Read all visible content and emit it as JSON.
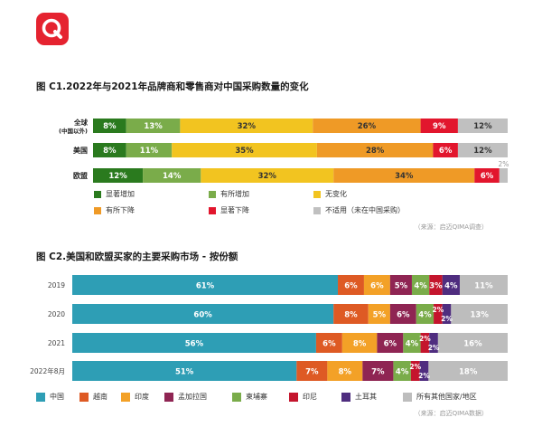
{
  "logo": {
    "icon": "q-logo-icon",
    "color": "#e52330"
  },
  "chart_data": [
    {
      "type": "bar",
      "stacked": "horizontal-100",
      "title": "图 C1.2022年与2021年品牌商和零售商对中国采购数量的变化",
      "source": "（来源：启迈QIMA调查）",
      "categories": [
        "全球\n(中国以外)",
        "美国",
        "欧盟"
      ],
      "category_labels": [
        [
          "全球",
          "(中国以外)"
        ],
        [
          "美国"
        ],
        [
          "欧盟"
        ]
      ],
      "series": [
        {
          "name": "显著增加",
          "color": "#2a7a1e",
          "values": [
            8,
            8,
            12
          ],
          "labels": [
            "8%",
            "8%",
            "12%"
          ]
        },
        {
          "name": "有所增加",
          "color": "#7aac4a",
          "values": [
            13,
            11,
            14
          ],
          "labels": [
            "13%",
            "11%",
            "14%"
          ]
        },
        {
          "name": "无变化",
          "color": "#f2c420",
          "values": [
            32,
            35,
            32
          ],
          "labels": [
            "32%",
            "35%",
            "32%"
          ]
        },
        {
          "name": "有所下降",
          "color": "#ef9a26",
          "values": [
            26,
            28,
            34
          ],
          "labels": [
            "26%",
            "28%",
            "34%"
          ]
        },
        {
          "name": "显著下降",
          "color": "#e2162d",
          "values": [
            9,
            6,
            6
          ],
          "labels": [
            "9%",
            "6%",
            "6%"
          ]
        },
        {
          "name": "不适用（未在中国采购）",
          "color": "#c0c0c0",
          "values": [
            12,
            12,
            2
          ],
          "labels": [
            "12%",
            "12%",
            "2%"
          ]
        }
      ],
      "legend_columns": 3
    },
    {
      "type": "bar",
      "stacked": "horizontal-100",
      "title": "图 C2.美国和欧盟买家的主要采购市场 - 按份额",
      "source": "（来源：启迈QIMA数据）",
      "categories": [
        "2019",
        "2020",
        "2021",
        "2022年8月"
      ],
      "series": [
        {
          "name": "中国",
          "color": "#2e9eb5",
          "values": [
            61,
            60,
            56,
            51
          ],
          "labels": [
            "61%",
            "60%",
            "56%",
            "51%"
          ]
        },
        {
          "name": "越南",
          "color": "#de5a24",
          "values": [
            6,
            8,
            6,
            7
          ],
          "labels": [
            "6%",
            "8%",
            "6%",
            "7%"
          ]
        },
        {
          "name": "印度",
          "color": "#f3a127",
          "values": [
            6,
            5,
            8,
            8
          ],
          "labels": [
            "6%",
            "5%",
            "8%",
            "8%"
          ]
        },
        {
          "name": "孟加拉国",
          "color": "#8f2553",
          "values": [
            5,
            6,
            6,
            7
          ],
          "labels": [
            "5%",
            "6%",
            "6%",
            "7%"
          ]
        },
        {
          "name": "柬埔寨",
          "color": "#7aac4a",
          "values": [
            4,
            4,
            4,
            4
          ],
          "labels": [
            "4%",
            "4%",
            "4%",
            "4%"
          ]
        },
        {
          "name": "印尼",
          "color": "#c4152d",
          "values": [
            3,
            2,
            2,
            2
          ],
          "labels": [
            "3%",
            "2%",
            "2%",
            "2%"
          ]
        },
        {
          "name": "土耳其",
          "color": "#4f2d7f",
          "values": [
            4,
            2,
            2,
            2
          ],
          "labels": [
            "4%",
            "2%",
            "2%",
            "2%"
          ]
        },
        {
          "name": "所有其他国家/地区",
          "color": "#bdbdbd",
          "values": [
            11,
            13,
            16,
            18
          ],
          "labels": [
            "11%",
            "13%",
            "16%",
            "18%"
          ]
        }
      ],
      "legend_columns": 8
    }
  ]
}
